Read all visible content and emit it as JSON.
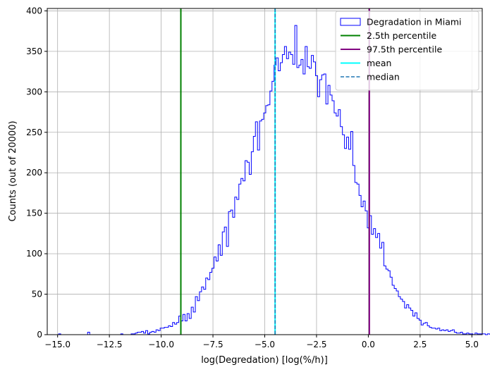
{
  "chart_data": {
    "type": "histogram",
    "xlabel": "log(Degredation) [log(%/h)]",
    "ylabel": "Counts (out of 20000)",
    "xlim": [
      -15.5,
      5.5
    ],
    "ylim": [
      0,
      403
    ],
    "xticks": [
      -15.0,
      -12.5,
      -10.0,
      -7.5,
      -5.0,
      -2.5,
      0.0,
      2.5,
      5.0
    ],
    "xtick_labels": [
      "−15.0",
      "−12.5",
      "−10.0",
      "−7.5",
      "−5.0",
      "−2.5",
      "0.0",
      "2.5",
      "5.0"
    ],
    "yticks": [
      0,
      50,
      100,
      150,
      200,
      250,
      300,
      350,
      400
    ],
    "ytick_labels": [
      "0",
      "50",
      "100",
      "150",
      "200",
      "250",
      "300",
      "350",
      "400"
    ],
    "grid": true,
    "legend_position": "top-right",
    "histogram": {
      "name": "Degradation in Miami",
      "color": "#0000ff",
      "bin_start": -14.95,
      "bin_width": 0.1,
      "counts": [
        1,
        0,
        0,
        0,
        0,
        0,
        0,
        0,
        0,
        0,
        0,
        0,
        0,
        0,
        3,
        0,
        0,
        0,
        0,
        0,
        0,
        0,
        0,
        0,
        0,
        0,
        0,
        0,
        0,
        0,
        1,
        0,
        0,
        0,
        0,
        1,
        1,
        2,
        3,
        3,
        4,
        2,
        5,
        1,
        3,
        4,
        3,
        6,
        5,
        8,
        8,
        9,
        9,
        11,
        10,
        15,
        13,
        15,
        23,
        17,
        25,
        17,
        26,
        20,
        34,
        28,
        47,
        42,
        53,
        59,
        56,
        70,
        68,
        77,
        82,
        96,
        91,
        111,
        98,
        127,
        133,
        109,
        152,
        154,
        145,
        170,
        167,
        186,
        193,
        190,
        215,
        213,
        198,
        226,
        245,
        263,
        228,
        264,
        266,
        274,
        283,
        284,
        301,
        313,
        333,
        342,
        326,
        336,
        346,
        356,
        341,
        349,
        346,
        334,
        382,
        330,
        333,
        340,
        322,
        356,
        331,
        329,
        345,
        337,
        320,
        294,
        315,
        321,
        322,
        285,
        308,
        296,
        289,
        274,
        270,
        278,
        257,
        247,
        230,
        244,
        229,
        251,
        209,
        188,
        186,
        172,
        158,
        165,
        153,
        132,
        147,
        124,
        131,
        120,
        125,
        107,
        114,
        85,
        81,
        79,
        71,
        61,
        57,
        54,
        47,
        44,
        41,
        33,
        37,
        33,
        30,
        23,
        27,
        20,
        18,
        12,
        14,
        15,
        11,
        9,
        8,
        8,
        7,
        8,
        5,
        6,
        5,
        6,
        4,
        5,
        6,
        3,
        2,
        2,
        3,
        1,
        1,
        2,
        1,
        1,
        0,
        2,
        1,
        1,
        1,
        1,
        0,
        1
      ]
    },
    "lines": [
      {
        "name": "2.5th percentile",
        "x": -9.05,
        "color": "#008000",
        "style": "solid"
      },
      {
        "name": "97.5th percentile",
        "x": 0.05,
        "color": "#800080",
        "style": "solid"
      },
      {
        "name": "mean",
        "x": -4.5,
        "color": "#00ffff",
        "style": "solid"
      },
      {
        "name": "median",
        "x": -4.5,
        "color": "#1f77b4",
        "style": "dashed"
      }
    ]
  }
}
